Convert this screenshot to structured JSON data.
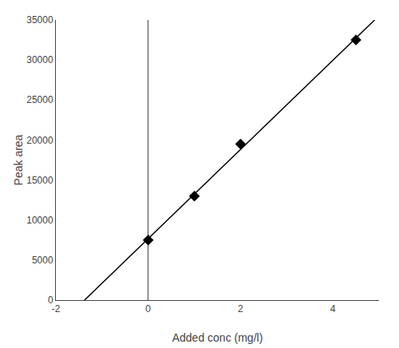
{
  "chart_data": {
    "type": "scatter",
    "xlabel": "Added conc (mg/l)",
    "ylabel": "Peak area",
    "series": [
      {
        "type": "scatter",
        "marker": "diamond",
        "color": "black",
        "x": [
          0,
          1,
          2,
          4.5
        ],
        "values": [
          7500,
          13000,
          19500,
          32500
        ]
      },
      {
        "type": "line",
        "color": "black",
        "x": [
          -1.3791374122367102,
          4.904714142427282
        ],
        "values": [
          0,
          35000
        ]
      }
    ],
    "xlim": [
      -2,
      5
    ],
    "ylim": [
      0,
      35000
    ],
    "xticks": [
      -2,
      0,
      2,
      4
    ],
    "yticks": [
      0,
      5000,
      10000,
      15000,
      20000,
      25000,
      30000,
      35000
    ],
    "grid": false
  }
}
